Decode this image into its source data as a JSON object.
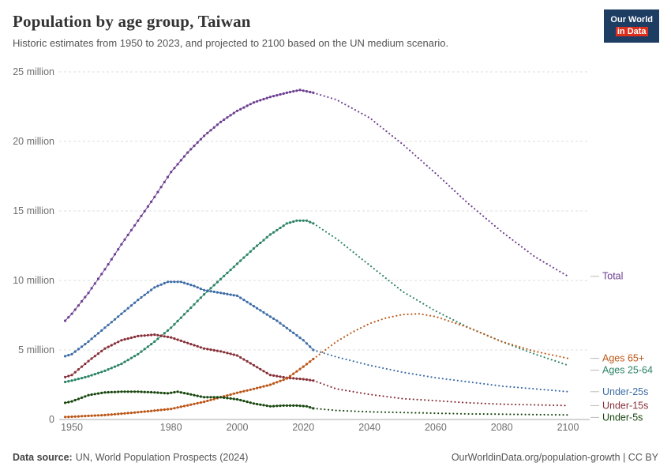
{
  "header": {
    "title": "Population by age group, Taiwan",
    "subtitle": "Historic estimates from 1950 to 2023, and projected to 2100 based on the UN medium scenario.",
    "logo_line1": "Our World",
    "logo_line2": "in Data"
  },
  "footer": {
    "source_label": "Data source:",
    "source_value": "UN, World Population Prospects (2024)",
    "credit": "OurWorldinData.org/population-growth | CC BY"
  },
  "chart_data": {
    "type": "line",
    "title": "Population by age group, Taiwan",
    "unit": "million",
    "x_axis": {
      "ticks": [
        1950,
        1980,
        2000,
        2020,
        2040,
        2060,
        2080,
        2100
      ],
      "range": [
        1948,
        2100
      ]
    },
    "y_axis": {
      "ticks": [
        0,
        5,
        10,
        15,
        20,
        25
      ],
      "tick_suffix": " million",
      "range": [
        0,
        25
      ],
      "grid": true
    },
    "projection_start": 2023,
    "legend_position": "right",
    "series": [
      {
        "name": "Total",
        "color": "#6d3e91",
        "points": [
          [
            1948,
            7.1
          ],
          [
            1950,
            7.6
          ],
          [
            1955,
            9.1
          ],
          [
            1960,
            10.8
          ],
          [
            1965,
            12.6
          ],
          [
            1970,
            14.3
          ],
          [
            1975,
            16.0
          ],
          [
            1980,
            17.8
          ],
          [
            1985,
            19.2
          ],
          [
            1990,
            20.4
          ],
          [
            1995,
            21.4
          ],
          [
            2000,
            22.2
          ],
          [
            2005,
            22.8
          ],
          [
            2010,
            23.2
          ],
          [
            2015,
            23.5
          ],
          [
            2019,
            23.7
          ],
          [
            2023,
            23.5
          ],
          [
            2030,
            23.0
          ],
          [
            2040,
            21.7
          ],
          [
            2050,
            19.8
          ],
          [
            2060,
            17.7
          ],
          [
            2070,
            15.5
          ],
          [
            2080,
            13.5
          ],
          [
            2090,
            11.7
          ],
          [
            2100,
            10.3
          ]
        ]
      },
      {
        "name": "Ages 25-64",
        "color": "#2c8465",
        "points": [
          [
            1948,
            2.7
          ],
          [
            1950,
            2.8
          ],
          [
            1955,
            3.1
          ],
          [
            1960,
            3.5
          ],
          [
            1965,
            4.0
          ],
          [
            1970,
            4.7
          ],
          [
            1975,
            5.6
          ],
          [
            1980,
            6.6
          ],
          [
            1985,
            7.8
          ],
          [
            1990,
            9.0
          ],
          [
            1995,
            10.1
          ],
          [
            2000,
            11.2
          ],
          [
            2005,
            12.3
          ],
          [
            2010,
            13.3
          ],
          [
            2015,
            14.1
          ],
          [
            2018,
            14.3
          ],
          [
            2021,
            14.3
          ],
          [
            2023,
            14.1
          ],
          [
            2030,
            13.0
          ],
          [
            2040,
            11.1
          ],
          [
            2050,
            9.2
          ],
          [
            2060,
            7.8
          ],
          [
            2070,
            6.6
          ],
          [
            2080,
            5.6
          ],
          [
            2090,
            4.7
          ],
          [
            2100,
            3.9
          ]
        ]
      },
      {
        "name": "Under-25s",
        "color": "#3d6ca6",
        "points": [
          [
            1948,
            4.55
          ],
          [
            1950,
            4.7
          ],
          [
            1955,
            5.6
          ],
          [
            1960,
            6.6
          ],
          [
            1965,
            7.6
          ],
          [
            1970,
            8.6
          ],
          [
            1975,
            9.5
          ],
          [
            1979,
            9.9
          ],
          [
            1983,
            9.9
          ],
          [
            1987,
            9.6
          ],
          [
            1990,
            9.3
          ],
          [
            1995,
            9.1
          ],
          [
            2000,
            8.9
          ],
          [
            2004,
            8.3
          ],
          [
            2008,
            7.7
          ],
          [
            2012,
            7.1
          ],
          [
            2016,
            6.4
          ],
          [
            2020,
            5.7
          ],
          [
            2023,
            5.0
          ],
          [
            2030,
            4.5
          ],
          [
            2040,
            3.9
          ],
          [
            2050,
            3.4
          ],
          [
            2060,
            3.0
          ],
          [
            2070,
            2.7
          ],
          [
            2080,
            2.4
          ],
          [
            2090,
            2.2
          ],
          [
            2100,
            2.0
          ]
        ]
      },
      {
        "name": "Under-15s",
        "color": "#883039",
        "points": [
          [
            1948,
            3.05
          ],
          [
            1950,
            3.2
          ],
          [
            1955,
            4.2
          ],
          [
            1960,
            5.1
          ],
          [
            1965,
            5.7
          ],
          [
            1970,
            6.0
          ],
          [
            1975,
            6.1
          ],
          [
            1980,
            5.9
          ],
          [
            1985,
            5.5
          ],
          [
            1990,
            5.1
          ],
          [
            1995,
            4.9
          ],
          [
            2000,
            4.6
          ],
          [
            2005,
            3.9
          ],
          [
            2010,
            3.2
          ],
          [
            2015,
            3.0
          ],
          [
            2020,
            2.9
          ],
          [
            2023,
            2.8
          ],
          [
            2030,
            2.2
          ],
          [
            2040,
            1.8
          ],
          [
            2050,
            1.5
          ],
          [
            2060,
            1.35
          ],
          [
            2070,
            1.2
          ],
          [
            2080,
            1.1
          ],
          [
            2090,
            1.05
          ],
          [
            2100,
            1.0
          ]
        ]
      },
      {
        "name": "Ages 65+",
        "color": "#bc5617",
        "points": [
          [
            1948,
            0.18
          ],
          [
            1950,
            0.2
          ],
          [
            1960,
            0.32
          ],
          [
            1970,
            0.52
          ],
          [
            1980,
            0.76
          ],
          [
            1990,
            1.27
          ],
          [
            1995,
            1.6
          ],
          [
            2000,
            1.92
          ],
          [
            2005,
            2.2
          ],
          [
            2010,
            2.5
          ],
          [
            2015,
            2.95
          ],
          [
            2020,
            3.8
          ],
          [
            2023,
            4.35
          ],
          [
            2030,
            5.6
          ],
          [
            2035,
            6.3
          ],
          [
            2040,
            6.9
          ],
          [
            2045,
            7.3
          ],
          [
            2050,
            7.55
          ],
          [
            2055,
            7.6
          ],
          [
            2060,
            7.4
          ],
          [
            2070,
            6.6
          ],
          [
            2080,
            5.6
          ],
          [
            2090,
            4.9
          ],
          [
            2100,
            4.4
          ]
        ]
      },
      {
        "name": "Under-5s",
        "color": "#18470f",
        "points": [
          [
            1948,
            1.2
          ],
          [
            1950,
            1.3
          ],
          [
            1955,
            1.75
          ],
          [
            1960,
            1.95
          ],
          [
            1965,
            2.0
          ],
          [
            1970,
            2.0
          ],
          [
            1975,
            1.95
          ],
          [
            1979,
            1.88
          ],
          [
            1982,
            2.0
          ],
          [
            1985,
            1.85
          ],
          [
            1990,
            1.6
          ],
          [
            1995,
            1.6
          ],
          [
            2000,
            1.45
          ],
          [
            2005,
            1.15
          ],
          [
            2010,
            0.95
          ],
          [
            2014,
            1.0
          ],
          [
            2018,
            1.0
          ],
          [
            2021,
            0.95
          ],
          [
            2023,
            0.8
          ],
          [
            2030,
            0.65
          ],
          [
            2040,
            0.55
          ],
          [
            2050,
            0.5
          ],
          [
            2060,
            0.45
          ],
          [
            2070,
            0.4
          ],
          [
            2080,
            0.38
          ],
          [
            2090,
            0.35
          ],
          [
            2100,
            0.33
          ]
        ]
      }
    ]
  }
}
